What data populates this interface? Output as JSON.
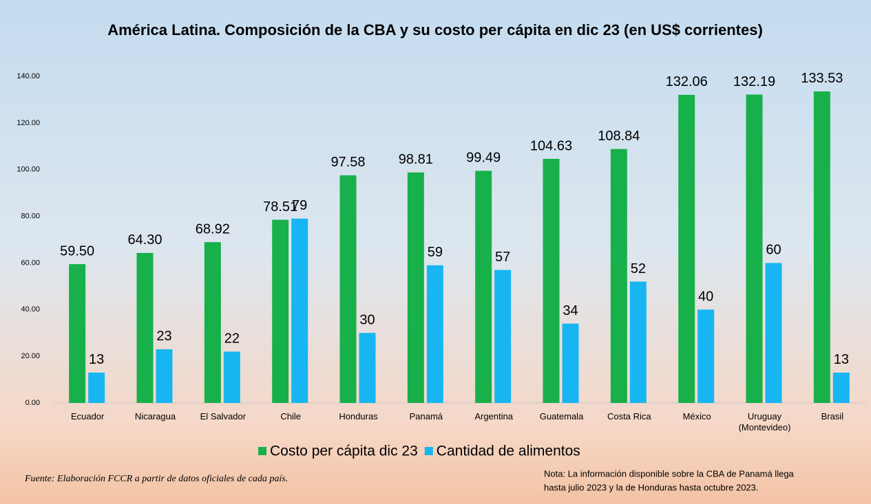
{
  "chart_data": {
    "type": "bar",
    "title": "América Latina. Composición de la CBA y su costo per cápita en dic 23 (en US$ corrientes)",
    "categories": [
      "Ecuador",
      "Nicaragua",
      "El Salvador",
      "Chile",
      "Honduras",
      "Panamá",
      "Argentina",
      "Guatemala",
      "Costa Rica",
      "México",
      "Uruguay\n(Montevideo)",
      "Brasil"
    ],
    "series": [
      {
        "name": "Costo per cápita dic 23",
        "color": "#18b04a",
        "values": [
          59.5,
          64.3,
          68.92,
          78.51,
          97.58,
          98.81,
          99.49,
          104.63,
          108.84,
          132.06,
          132.19,
          133.53
        ],
        "value_labels": [
          "59.50",
          "64.30",
          "68.92",
          "78.51",
          "97.58",
          "98.81",
          "99.49",
          "104.63",
          "108.84",
          "132.06",
          "132.19",
          "133.53"
        ]
      },
      {
        "name": "Cantidad de alimentos",
        "color": "#17b6f2",
        "values": [
          13,
          23,
          22,
          79,
          30,
          59,
          57,
          34,
          52,
          40,
          60,
          13
        ]
      }
    ],
    "ylim": [
      0,
      140
    ],
    "yticks": [
      {
        "value": 0,
        "label": "0.00"
      },
      {
        "value": 20,
        "label": "20.00"
      },
      {
        "value": 40,
        "label": "40.00"
      },
      {
        "value": 60,
        "label": "60.00"
      },
      {
        "value": 80,
        "label": "80.00"
      },
      {
        "value": 100,
        "label": "100.00"
      },
      {
        "value": 120,
        "label": "120.00"
      },
      {
        "value": 140,
        "label": "140.00"
      }
    ],
    "grid": false,
    "legend": "bottom",
    "source": "Fuente: Elaboración FCCR a partir de datos oficiales de cada país.",
    "note": [
      "Nota: La información disponible sobre la CBA de Panamá llega",
      "hasta julio 2023 y la de Honduras hasta octubre 2023."
    ]
  }
}
